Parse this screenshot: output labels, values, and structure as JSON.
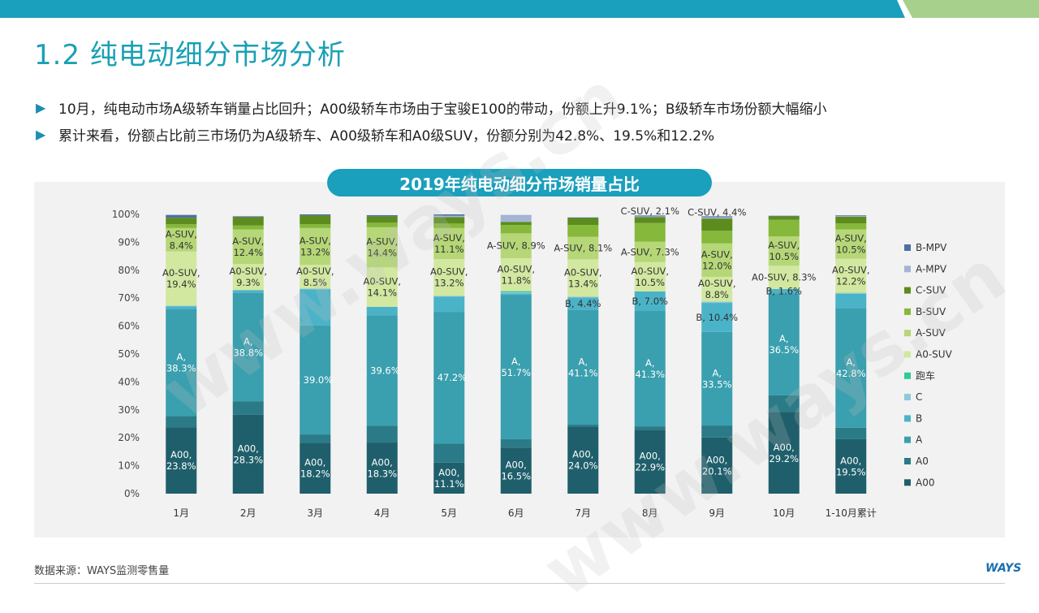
{
  "page": {
    "title": "1.2 纯电动细分市场分析",
    "bullets": [
      "10月，纯电动市场A级轿车销量占比回升；A00级轿车市场由于宝骏E100的带动，份额上升9.1%；B级轿车市场份额大幅缩小",
      "累计来看，份额占比前三市场仍为A级轿车、A00级轿车和A0级SUV，份额分别为42.8%、19.5%和12.2%"
    ],
    "source": "数据来源：WAYS监测零售量",
    "logo": "WAYS",
    "watermark": "www.ways.cn"
  },
  "colors": {
    "topbar": "#1a9fbc",
    "topbar_accent": "#a8d08d",
    "title": "#1aa0b5"
  },
  "chart_data": {
    "type": "bar",
    "stacked": true,
    "percent": true,
    "title": "2019年纯电动细分市场销量占比",
    "ylim": [
      0,
      100
    ],
    "yticks": [
      "0%",
      "10%",
      "20%",
      "30%",
      "40%",
      "50%",
      "60%",
      "70%",
      "80%",
      "90%",
      "100%"
    ],
    "categories": [
      "1月",
      "2月",
      "3月",
      "4月",
      "5月",
      "6月",
      "7月",
      "8月",
      "9月",
      "10月",
      "1-10月累计"
    ],
    "legend_position": "right",
    "series": [
      {
        "name": "A00",
        "color": "#1f5f6b",
        "values": [
          23.8,
          28.3,
          18.2,
          18.3,
          11.1,
          16.5,
          24.0,
          22.9,
          20.1,
          29.2,
          19.5
        ]
      },
      {
        "name": "A0",
        "color": "#2a7b87",
        "values": [
          4.0,
          4.8,
          3.0,
          6.0,
          6.8,
          3.0,
          0.7,
          1.2,
          4.3,
          6.0,
          4.1
        ]
      },
      {
        "name": "A",
        "color": "#3a9fae",
        "values": [
          38.3,
          38.8,
          39.0,
          39.6,
          47.2,
          51.7,
          41.1,
          41.3,
          33.5,
          36.5,
          42.8
        ]
      },
      {
        "name": "B",
        "color": "#4bb3c8",
        "values": [
          1.0,
          1.0,
          13.0,
          3.0,
          5.5,
          0.5,
          4.4,
          7.0,
          10.4,
          1.6,
          5.2
        ]
      },
      {
        "name": "C",
        "color": "#8ec8da",
        "values": [
          0.2,
          0,
          0.2,
          0,
          0.2,
          0.4,
          0.3,
          0,
          0.5,
          0,
          0.2
        ]
      },
      {
        "name": "跑车",
        "color": "#2fc99a",
        "values": [
          0,
          0,
          0,
          0,
          0,
          0.4,
          0,
          0,
          0,
          0,
          0.1
        ]
      },
      {
        "name": "A0-SUV",
        "color": "#d2e8a0",
        "values": [
          19.4,
          9.3,
          8.5,
          14.1,
          13.2,
          11.8,
          13.4,
          10.5,
          8.8,
          8.3,
          12.2
        ]
      },
      {
        "name": "A-SUV",
        "color": "#b5d777",
        "values": [
          8.4,
          12.4,
          13.2,
          14.4,
          11.1,
          8.9,
          8.1,
          7.3,
          12.0,
          10.5,
          10.5
        ]
      },
      {
        "name": "B-SUV",
        "color": "#86b83b",
        "values": [
          1.4,
          1.4,
          1.4,
          1.6,
          1.6,
          3.0,
          4.2,
          6.7,
          4.5,
          6.0,
          2.2
        ]
      },
      {
        "name": "C-SUV",
        "color": "#5c8c1e",
        "values": [
          2.3,
          3.0,
          3.1,
          2.3,
          2.3,
          1.1,
          2.5,
          2.1,
          4.4,
          1.2,
          2.4
        ]
      },
      {
        "name": "A-MPV",
        "color": "#a4b4d4",
        "values": [
          0,
          0,
          0,
          0,
          0.5,
          2.5,
          0,
          0.3,
          0.5,
          0,
          0.3
        ]
      },
      {
        "name": "B-MPV",
        "color": "#4e6fa5",
        "values": [
          1.0,
          0.3,
          0.4,
          0.4,
          0.5,
          0,
          0.2,
          0.3,
          0.3,
          0.2,
          0.2
        ]
      }
    ],
    "labels": [
      {
        "cat": 0,
        "series": "A00",
        "lines": [
          "A00,",
          "23.8%"
        ],
        "color": "#fff"
      },
      {
        "cat": 0,
        "series": "A",
        "lines": [
          "A,",
          "38.3%"
        ],
        "color": "#fff"
      },
      {
        "cat": 0,
        "series": "A0-SUV",
        "lines": [
          "A0-SUV,",
          "19.4%"
        ],
        "color": "#333"
      },
      {
        "cat": 0,
        "series": "A-SUV",
        "lines": [
          "A-SUV,",
          "8.4%"
        ],
        "color": "#333"
      },
      {
        "cat": 1,
        "series": "A00",
        "lines": [
          "A00,",
          "28.3%"
        ],
        "color": "#fff"
      },
      {
        "cat": 1,
        "series": "A",
        "lines": [
          "A,",
          "38.8%"
        ],
        "color": "#fff"
      },
      {
        "cat": 1,
        "series": "A0-SUV",
        "lines": [
          "A0-SUV,",
          "9.3%"
        ],
        "color": "#333"
      },
      {
        "cat": 1,
        "series": "A-SUV",
        "lines": [
          "A-SUV,",
          "12.4%"
        ],
        "color": "#333"
      },
      {
        "cat": 2,
        "series": "A00",
        "lines": [
          "A00,",
          "18.2%"
        ],
        "color": "#fff"
      },
      {
        "cat": 2,
        "series": "A",
        "lines": [
          ", 39.0%"
        ],
        "color": "#fff"
      },
      {
        "cat": 2,
        "series": "A0-SUV",
        "lines": [
          "A0-SUV,",
          "8.5%"
        ],
        "color": "#333"
      },
      {
        "cat": 2,
        "series": "A-SUV",
        "lines": [
          "A-SUV,",
          "13.2%"
        ],
        "color": "#333"
      },
      {
        "cat": 3,
        "series": "A00",
        "lines": [
          "A00,",
          "18.3%"
        ],
        "color": "#fff"
      },
      {
        "cat": 3,
        "series": "A",
        "lines": [
          ", 39.6%"
        ],
        "color": "#fff"
      },
      {
        "cat": 3,
        "series": "A0-SUV",
        "lines": [
          "A0-SUV,",
          "14.1%"
        ],
        "color": "#333"
      },
      {
        "cat": 3,
        "series": "A-SUV",
        "lines": [
          "A-SUV,",
          "14.4%"
        ],
        "color": "#333"
      },
      {
        "cat": 4,
        "series": "A00",
        "lines": [
          "A00,",
          "11.1%"
        ],
        "color": "#fff"
      },
      {
        "cat": 4,
        "series": "A",
        "lines": [
          ", 47.2%"
        ],
        "color": "#fff"
      },
      {
        "cat": 4,
        "series": "A0-SUV",
        "lines": [
          "A0-SUV,",
          "13.2%"
        ],
        "color": "#333"
      },
      {
        "cat": 4,
        "series": "A-SUV",
        "lines": [
          "A-SUV,",
          "11.1%"
        ],
        "color": "#333"
      },
      {
        "cat": 5,
        "series": "A00",
        "lines": [
          "A00,",
          "16.5%"
        ],
        "color": "#fff"
      },
      {
        "cat": 5,
        "series": "A",
        "lines": [
          "A,",
          "51.7%"
        ],
        "color": "#fff"
      },
      {
        "cat": 5,
        "series": "A0-SUV",
        "lines": [
          "A0-SUV,",
          "11.8%"
        ],
        "color": "#333"
      },
      {
        "cat": 5,
        "series": "A-SUV",
        "lines": [
          "A-SUV, 8.9%"
        ],
        "color": "#333"
      },
      {
        "cat": 6,
        "series": "A00",
        "lines": [
          "A00,",
          "24.0%"
        ],
        "color": "#fff"
      },
      {
        "cat": 6,
        "series": "A",
        "lines": [
          "A,",
          "41.1%"
        ],
        "color": "#fff"
      },
      {
        "cat": 6,
        "series": "B",
        "lines": [
          "B, 4.4%"
        ],
        "color": "#333"
      },
      {
        "cat": 6,
        "series": "A0-SUV",
        "lines": [
          "A0-SUV,",
          "13.4%"
        ],
        "color": "#333"
      },
      {
        "cat": 6,
        "series": "A-SUV",
        "lines": [
          "A-SUV, 8.1%"
        ],
        "color": "#333"
      },
      {
        "cat": 7,
        "series": "A00",
        "lines": [
          "A00,",
          "22.9%"
        ],
        "color": "#fff"
      },
      {
        "cat": 7,
        "series": "A",
        "lines": [
          "A,",
          "41.3%"
        ],
        "color": "#fff"
      },
      {
        "cat": 7,
        "series": "B",
        "lines": [
          "B, 7.0%"
        ],
        "color": "#333"
      },
      {
        "cat": 7,
        "series": "A0-SUV",
        "lines": [
          "A0-SUV,",
          "10.5%"
        ],
        "color": "#333"
      },
      {
        "cat": 7,
        "series": "A-SUV",
        "lines": [
          "A-SUV, 7.3%"
        ],
        "color": "#333"
      },
      {
        "cat": 7,
        "series": "C-SUV",
        "lines": [
          "C-SUV, 2.1%"
        ],
        "color": "#333"
      },
      {
        "cat": 8,
        "series": "A00",
        "lines": [
          "A00,",
          "20.1%"
        ],
        "color": "#fff"
      },
      {
        "cat": 8,
        "series": "A",
        "lines": [
          "A,",
          "33.5%"
        ],
        "color": "#fff"
      },
      {
        "cat": 8,
        "series": "B",
        "lines": [
          "B, 10.4%"
        ],
        "color": "#333"
      },
      {
        "cat": 8,
        "series": "A0-SUV",
        "lines": [
          "A0-SUV,",
          "8.8%"
        ],
        "color": "#333"
      },
      {
        "cat": 8,
        "series": "A-SUV",
        "lines": [
          "A-SUV,",
          "12.0%"
        ],
        "color": "#333"
      },
      {
        "cat": 8,
        "series": "C-SUV",
        "lines": [
          "C-SUV, 4.4%"
        ],
        "color": "#333"
      },
      {
        "cat": 9,
        "series": "A00",
        "lines": [
          "A00,",
          "29.2%"
        ],
        "color": "#fff"
      },
      {
        "cat": 9,
        "series": "A",
        "lines": [
          "A,",
          "36.5%"
        ],
        "color": "#fff"
      },
      {
        "cat": 9,
        "series": "B",
        "lines": [
          "B, 1.6%"
        ],
        "color": "#333"
      },
      {
        "cat": 9,
        "series": "A0-SUV",
        "lines": [
          "A0-SUV, 8.3%"
        ],
        "color": "#333"
      },
      {
        "cat": 9,
        "series": "A-SUV",
        "lines": [
          "A-SUV,",
          "10.5%"
        ],
        "color": "#333"
      },
      {
        "cat": 10,
        "series": "A00",
        "lines": [
          "A00,",
          "19.5%"
        ],
        "color": "#fff"
      },
      {
        "cat": 10,
        "series": "A",
        "lines": [
          "A,",
          "42.8%"
        ],
        "color": "#fff"
      },
      {
        "cat": 10,
        "series": "A0-SUV",
        "lines": [
          "A0-SUV,",
          "12.2%"
        ],
        "color": "#333"
      },
      {
        "cat": 10,
        "series": "A-SUV",
        "lines": [
          "A-SUV,",
          "10.5%"
        ],
        "color": "#333"
      }
    ]
  }
}
